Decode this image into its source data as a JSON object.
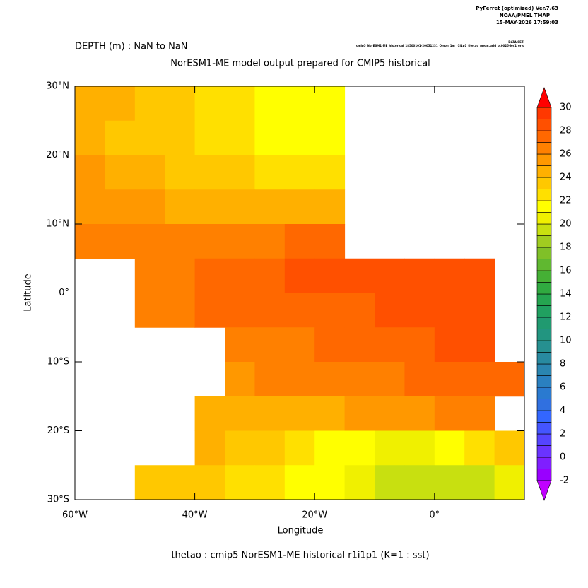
{
  "header": {
    "program": "PyFerret (optimized) Ver.7.63",
    "org": "NOAA/PMEL TMAP",
    "date": "15-MAY-2026 17:59:03",
    "dataset_label": "DATA SET:",
    "dataset": "cmip5_NorESM1-ME_historical_18500101-20051231_Omon_1m_r1i1p1_thetao_mean.grid_ot0025-lev1_orig"
  },
  "chart_data": {
    "type": "heatmap",
    "subtitle": "DEPTH (m) : NaN to NaN",
    "title": "NorESM1-ME model output prepared for CMIP5 historical",
    "xlabel": "Longitude",
    "ylabel": "Latitude",
    "footer": "thetao : cmip5 NorESM1-ME historical r1i1p1    (K=1 : sst)",
    "xlim": [
      -60,
      15
    ],
    "ylim": [
      -30,
      30
    ],
    "xticks": [
      {
        "value": -60,
        "label": "60°W"
      },
      {
        "value": -40,
        "label": "40°W"
      },
      {
        "value": -20,
        "label": "20°W"
      },
      {
        "value": 0,
        "label": "0°"
      }
    ],
    "yticks": [
      {
        "value": 30,
        "label": "30°N"
      },
      {
        "value": 20,
        "label": "20°N"
      },
      {
        "value": 10,
        "label": "10°N"
      },
      {
        "value": 0,
        "label": "0°"
      },
      {
        "value": -10,
        "label": "10°S"
      },
      {
        "value": -20,
        "label": "20°S"
      },
      {
        "value": -30,
        "label": "30°S"
      }
    ],
    "x": [
      -57.5,
      -52.5,
      -47.5,
      -42.5,
      -37.5,
      -32.5,
      -27.5,
      -22.5,
      -17.5,
      -12.5,
      -7.5,
      -2.5,
      2.5,
      7.5,
      12.5
    ],
    "y": [
      27.5,
      22.5,
      17.5,
      12.5,
      7.5,
      2.5,
      -2.5,
      -7.5,
      -12.5,
      -17.5,
      -22.5,
      -27.5
    ],
    "cell_size": [
      5,
      5
    ],
    "values": [
      [
        24,
        24,
        23,
        23,
        22,
        22,
        21,
        21,
        21,
        null,
        null,
        null,
        null,
        null,
        null
      ],
      [
        24,
        23,
        23,
        23,
        22,
        22,
        21,
        21,
        21,
        null,
        null,
        null,
        null,
        null,
        null
      ],
      [
        25,
        24,
        24,
        23,
        23,
        23,
        22,
        22,
        22,
        null,
        null,
        null,
        null,
        null,
        null
      ],
      [
        25,
        25,
        25,
        24,
        24,
        24,
        24,
        24,
        24,
        null,
        null,
        null,
        null,
        null,
        null
      ],
      [
        26,
        26,
        26,
        26,
        26,
        26,
        26,
        27,
        27,
        null,
        null,
        null,
        null,
        null,
        null
      ],
      [
        null,
        null,
        26,
        26,
        27,
        27,
        27,
        28,
        28,
        28,
        28,
        28,
        28,
        28,
        null
      ],
      [
        null,
        null,
        26,
        26,
        27,
        27,
        27,
        27,
        27,
        27,
        28,
        28,
        28,
        28,
        null
      ],
      [
        null,
        null,
        null,
        null,
        null,
        26,
        26,
        26,
        27,
        27,
        27,
        27,
        28,
        28,
        null
      ],
      [
        null,
        null,
        null,
        null,
        null,
        25,
        26,
        26,
        26,
        26,
        26,
        27,
        27,
        27,
        27
      ],
      [
        null,
        null,
        null,
        null,
        24,
        24,
        24,
        24,
        24,
        25,
        25,
        25,
        26,
        26,
        null
      ],
      [
        null,
        null,
        null,
        null,
        24,
        23,
        23,
        22,
        21,
        21,
        20,
        20,
        21,
        22,
        23
      ],
      [
        null,
        null,
        23,
        23,
        23,
        22,
        22,
        21,
        21,
        20,
        19,
        19,
        19,
        19,
        20
      ]
    ],
    "colorbar": {
      "levels": [
        -2,
        -1,
        0,
        1,
        2,
        3,
        4,
        5,
        6,
        7,
        8,
        9,
        10,
        11,
        12,
        13,
        14,
        15,
        16,
        17,
        18,
        19,
        20,
        21,
        22,
        23,
        24,
        25,
        26,
        27,
        28,
        29,
        30
      ],
      "colors": [
        "#9900ff",
        "#7f1fff",
        "#6a33ff",
        "#5544ff",
        "#4455ff",
        "#3366ff",
        "#3070e0",
        "#2a7ad0",
        "#2a80c0",
        "#2a85b0",
        "#288aa0",
        "#269090",
        "#229580",
        "#209a70",
        "#20a060",
        "#25a550",
        "#30aa40",
        "#45b035",
        "#60b830",
        "#80c028",
        "#a0cc20",
        "#c8e010",
        "#f0f000",
        "#ffff00",
        "#ffe000",
        "#ffc800",
        "#ffb000",
        "#ff9800",
        "#ff8000",
        "#ff6800",
        "#ff5000",
        "#ff3800"
      ],
      "over_color": "#ff0000",
      "under_color": "#c000ff",
      "ticks": [
        -2,
        0,
        2,
        4,
        6,
        8,
        10,
        12,
        14,
        16,
        18,
        20,
        22,
        24,
        26,
        28,
        30
      ]
    }
  }
}
